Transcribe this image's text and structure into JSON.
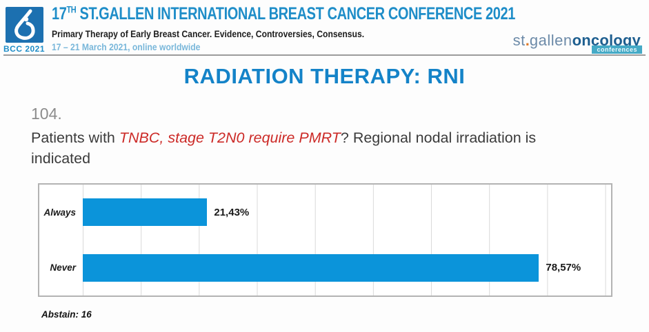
{
  "header": {
    "bcc_label": "BCC 2021",
    "title_num": "17",
    "title_sup": "TH",
    "title_rest": " ST.GALLEN INTERNATIONAL BREAST CANCER CONFERENCE 2021",
    "subtitle": "Primary Therapy of Early Breast Cancer. Evidence, Controversies, Consensus.",
    "date_line": "17 – 21 March 2021, online worldwide",
    "brand": {
      "part1": "st",
      "dot": ".",
      "part2": "gallen",
      "part3": "oncology",
      "badge": "conferences"
    }
  },
  "slide": {
    "title": "RADIATION THERAPY: RNI",
    "question_number": "104.",
    "question_prefix": "Patients with ",
    "question_highlight": "TNBC, stage T2N0 require PMRT",
    "question_suffix": "? Regional nodal irradiation is indicated",
    "abstain": "Abstain: 16"
  },
  "chart_data": {
    "type": "bar",
    "orientation": "horizontal",
    "title": "",
    "categories": [
      "Always",
      "Never"
    ],
    "values": [
      21.43,
      78.57
    ],
    "value_labels": [
      "21,43%",
      "78,57%"
    ],
    "xlim": [
      0,
      91
    ],
    "gridline_step": 10,
    "grid": true,
    "legend": false,
    "bar_color": "#0b94da"
  },
  "colors": {
    "header_blue": "#1e8dc8",
    "date_blue": "#79b7da",
    "logo_blue": "#1c70b0",
    "title_blue": "#1483c8",
    "highlight_red": "#cc2a27",
    "bar_blue": "#0b94da",
    "brand_orange": "#e07b2a",
    "badge_teal": "#45aac6"
  }
}
